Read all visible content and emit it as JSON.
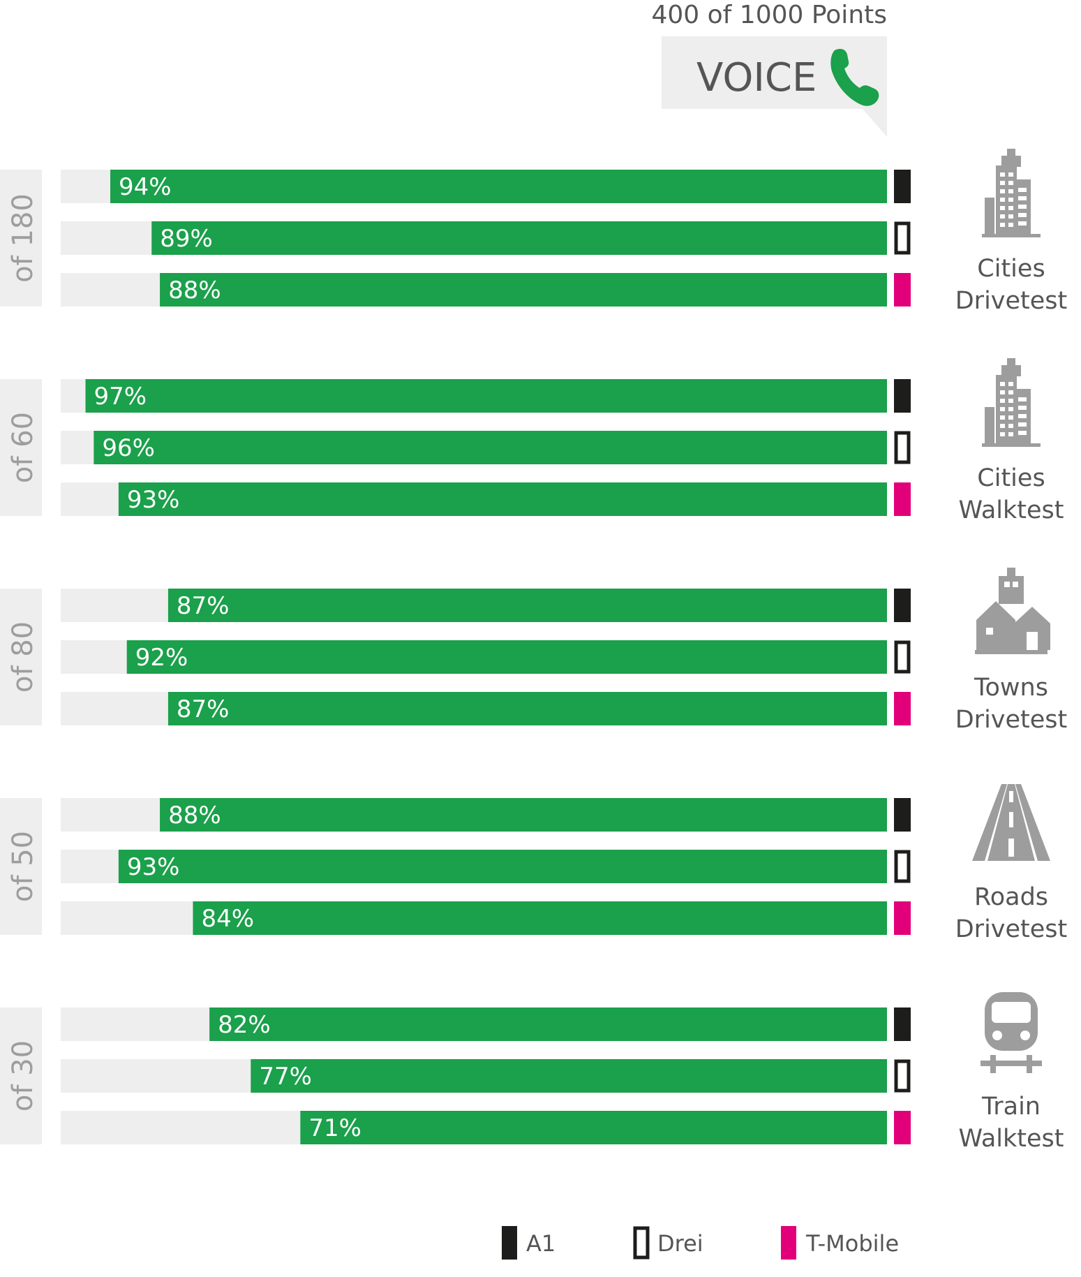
{
  "header": {
    "points_text": "400 of 1000 Points",
    "category_label": "VOICE",
    "icon": "phone-icon"
  },
  "colors": {
    "accent_green": "#1ba04b",
    "track_gray": "#eeeeee",
    "side_tab_gray": "#eeeeee",
    "icon_gray": "#9d9d9d",
    "text_gray": "#555555",
    "a1": "#1d1d1b",
    "drei_outline": "#1d1d1b",
    "tmobile": "#e2007a"
  },
  "legend": [
    {
      "name": "A1",
      "style": "solid",
      "color": "#1d1d1b"
    },
    {
      "name": "Drei",
      "style": "outline",
      "color": "#1d1d1b"
    },
    {
      "name": "T-Mobile",
      "style": "solid",
      "color": "#e2007a"
    }
  ],
  "chart_data": {
    "type": "bar",
    "orientation": "horizontal",
    "xlim": [
      0,
      100
    ],
    "unit": "%",
    "series_names": [
      "A1",
      "Drei",
      "T-Mobile"
    ],
    "groups": [
      {
        "max_label": "of 180",
        "category": [
          "Cities",
          "Drivetest"
        ],
        "icon": "skyscraper-icon",
        "values": [
          94,
          89,
          88
        ],
        "labels": [
          "94%",
          "89%",
          "88%"
        ]
      },
      {
        "max_label": "of 60",
        "category": [
          "Cities",
          "Walktest"
        ],
        "icon": "skyscraper-icon",
        "values": [
          97,
          96,
          93
        ],
        "labels": [
          "97%",
          "96%",
          "93%"
        ]
      },
      {
        "max_label": "of 80",
        "category": [
          "Towns",
          "Drivetest"
        ],
        "icon": "town-houses-icon",
        "values": [
          87,
          92,
          87
        ],
        "labels": [
          "87%",
          "92%",
          "87%"
        ]
      },
      {
        "max_label": "of 50",
        "category": [
          "Roads",
          "Drivetest"
        ],
        "icon": "road-icon",
        "values": [
          88,
          93,
          84
        ],
        "labels": [
          "88%",
          "93%",
          "84%"
        ]
      },
      {
        "max_label": "of 30",
        "category": [
          "Train",
          "Walktest"
        ],
        "icon": "train-icon",
        "values": [
          82,
          77,
          71
        ],
        "labels": [
          "82%",
          "77%",
          "71%"
        ]
      }
    ]
  }
}
